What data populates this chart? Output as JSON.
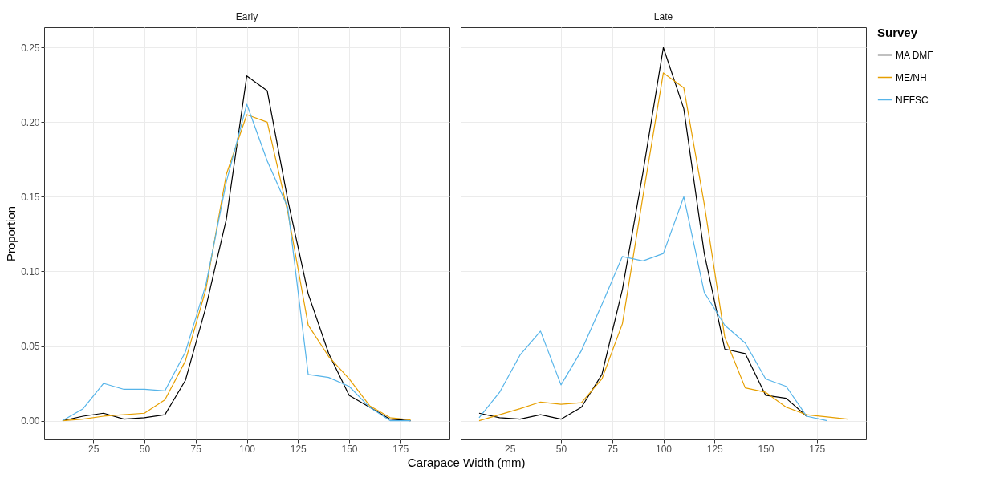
{
  "chart_data": [
    {
      "type": "line",
      "title": "Early",
      "xlabel": "Carapace Width (mm)",
      "ylabel": "Proportion",
      "x": [
        10,
        20,
        30,
        40,
        50,
        60,
        70,
        80,
        90,
        100,
        110,
        120,
        130,
        140,
        150,
        160,
        170,
        180
      ],
      "series": [
        {
          "color": "#000000",
          "values": [
            0,
            0.003,
            0.005,
            0.001,
            0.002,
            0.004,
            0.027,
            0.076,
            0.135,
            0.231,
            0.221,
            0.148,
            0.085,
            0.045,
            0.017,
            0.009,
            0.001,
            0
          ]
        },
        {
          "color": "#e69f00",
          "values": [
            0,
            0.001,
            0.003,
            0.004,
            0.005,
            0.014,
            0.04,
            0.088,
            0.165,
            0.205,
            0.2,
            0.14,
            0.064,
            0.043,
            0.028,
            0.01,
            0.002,
            0.0005
          ]
        },
        {
          "color": "#56b4e9",
          "values": [
            0,
            0.008,
            0.025,
            0.021,
            0.021,
            0.02,
            0.046,
            0.091,
            0.16,
            0.212,
            0.174,
            0.143,
            0.031,
            0.029,
            0.023,
            0.009,
            0,
            0
          ]
        }
      ],
      "xlim": [
        1,
        199
      ],
      "xticks": [
        25,
        50,
        75,
        100,
        125,
        150,
        175
      ],
      "ylim": [
        -0.0126,
        0.2636
      ],
      "yticks": [
        {
          "value": 0,
          "label": "0.00"
        },
        {
          "value": 0.05,
          "label": "0.05"
        },
        {
          "value": 0.1,
          "label": "0.10"
        },
        {
          "value": 0.15,
          "label": "0.15"
        },
        {
          "value": 0.2,
          "label": "0.20"
        },
        {
          "value": 0.25,
          "label": "0.25"
        }
      ],
      "grid": true
    },
    {
      "type": "line",
      "title": "Late",
      "legend_title": "Survey",
      "legend": "right",
      "tick_labels": "x",
      "x": [
        10,
        20,
        30,
        40,
        50,
        60,
        70,
        80,
        90,
        100,
        110,
        120,
        130,
        140,
        150,
        160,
        170,
        180,
        190
      ],
      "series": [
        {
          "name": "MA DMF",
          "color": "#000000",
          "values": [
            0.005,
            0.002,
            0.001,
            0.004,
            0.001,
            0.009,
            0.031,
            0.088,
            0.166,
            0.25,
            0.209,
            0.112,
            0.048,
            0.045,
            0.017,
            0.015,
            0.003,
            null,
            null
          ]
        },
        {
          "name": "ME/NH",
          "color": "#e69f00",
          "values": [
            0,
            0.004,
            0.008,
            0.0125,
            0.011,
            0.012,
            0.028,
            0.065,
            0.15,
            0.233,
            0.223,
            0.145,
            0.056,
            0.022,
            0.019,
            0.009,
            0.004,
            0.0025,
            0.001
          ]
        },
        {
          "name": "NEFSC",
          "color": "#56b4e9",
          "values": [
            0.002,
            0.019,
            0.044,
            0.06,
            0.024,
            0.047,
            0.078,
            0.11,
            0.107,
            0.112,
            0.15,
            0.086,
            0.064,
            0.052,
            0.028,
            0.023,
            0.003,
            0,
            null
          ]
        }
      ],
      "xlim": [
        1,
        199
      ],
      "xticks": [
        25,
        50,
        75,
        100,
        125,
        150,
        175
      ],
      "ylim": [
        -0.0126,
        0.2636
      ],
      "yticks": [
        0,
        0.05,
        0.1,
        0.15,
        0.2,
        0.25
      ],
      "grid": true
    }
  ]
}
